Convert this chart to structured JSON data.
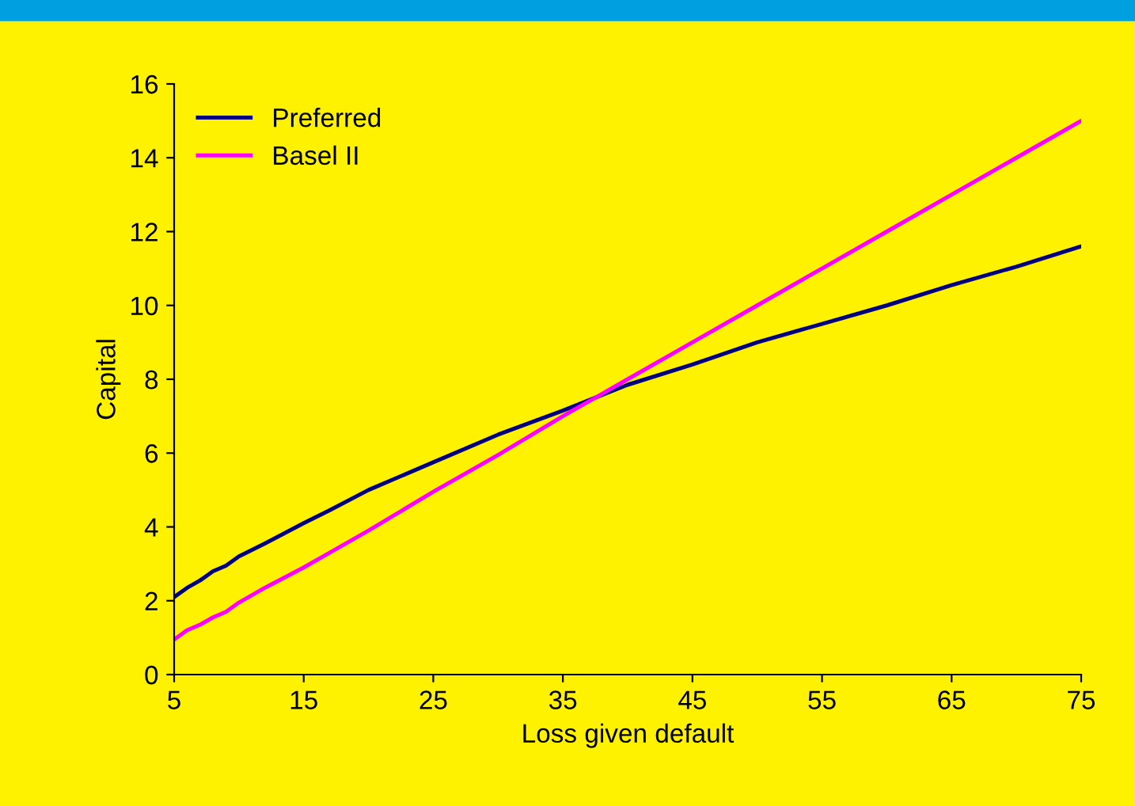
{
  "chart_data": {
    "type": "line",
    "xlabel": "Loss given default",
    "ylabel": "Capital",
    "x": [
      5,
      6,
      7,
      8,
      9,
      10,
      12,
      15,
      17,
      20,
      25,
      30,
      35,
      40,
      45,
      50,
      55,
      60,
      65,
      70,
      75
    ],
    "series": [
      {
        "name": "Preferred",
        "color": "#000080",
        "values": [
          2.1,
          2.35,
          2.55,
          2.8,
          2.95,
          3.2,
          3.55,
          4.1,
          4.45,
          5.0,
          5.75,
          6.5,
          7.15,
          7.85,
          8.4,
          9.0,
          9.5,
          10.0,
          10.55,
          11.05,
          11.6
        ]
      },
      {
        "name": "Basel II",
        "color": "#ff00ff",
        "values": [
          0.95,
          1.2,
          1.35,
          1.55,
          1.7,
          1.95,
          2.35,
          2.9,
          3.3,
          3.9,
          4.95,
          5.95,
          7.0,
          8.0,
          9.0,
          10.0,
          11.0,
          12.0,
          13.0,
          14.0,
          15.0
        ]
      }
    ],
    "xlim": [
      5,
      75
    ],
    "xticks": [
      5,
      15,
      25,
      35,
      45,
      55,
      65,
      75
    ],
    "ylim": [
      0,
      16
    ],
    "yticks": [
      0,
      2,
      4,
      6,
      8,
      10,
      12,
      14,
      16
    ],
    "grid": false,
    "legend": "top left",
    "marker": "none",
    "line_style": "solid"
  }
}
